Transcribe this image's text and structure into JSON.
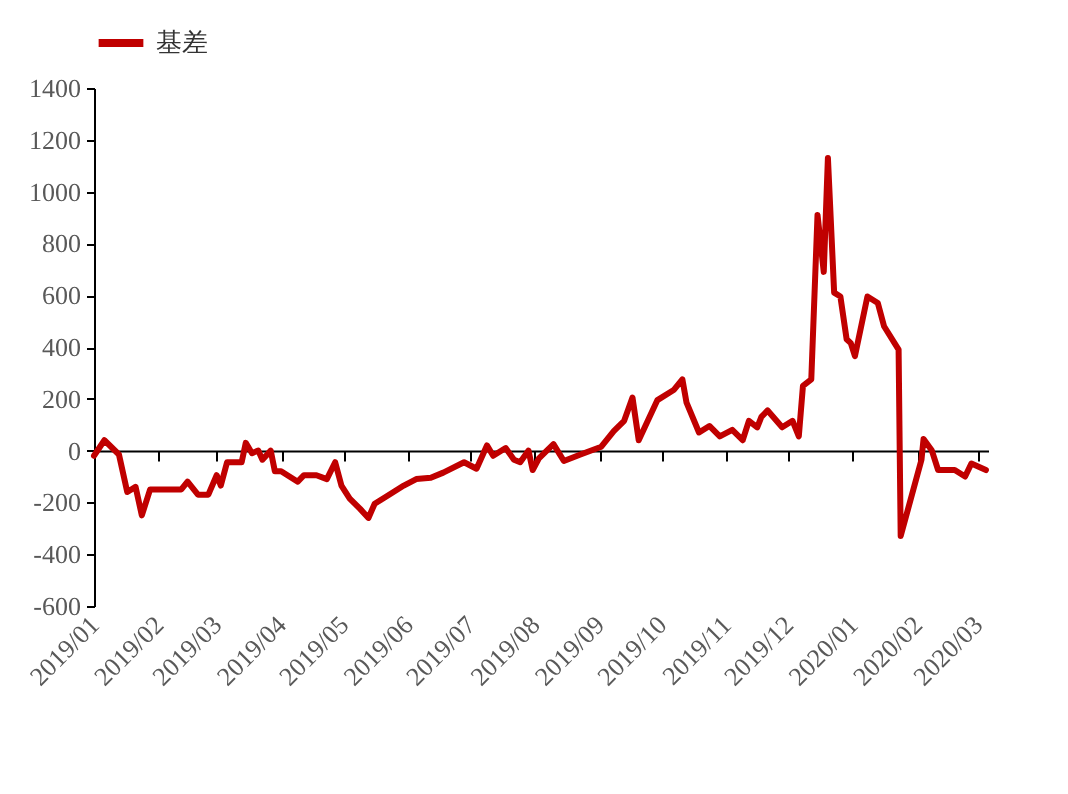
{
  "chart_data": {
    "type": "line",
    "legend": "top",
    "x": [
      "2019-01-01",
      "2019-01-06",
      "2019-01-13",
      "2019-01-17",
      "2019-01-21",
      "2019-01-24",
      "2019-01-28",
      "2019-02-12",
      "2019-02-15",
      "2019-02-20",
      "2019-02-25",
      "2019-03-01",
      "2019-03-03",
      "2019-03-06",
      "2019-03-13",
      "2019-03-15",
      "2019-03-18",
      "2019-03-21",
      "2019-03-23",
      "2019-03-27",
      "2019-03-29",
      "2019-04-01",
      "2019-04-09",
      "2019-04-12",
      "2019-04-18",
      "2019-04-23",
      "2019-04-27",
      "2019-04-30",
      "2019-05-04",
      "2019-05-09",
      "2019-05-13",
      "2019-05-16",
      "2019-05-22",
      "2019-05-30",
      "2019-06-05",
      "2019-06-12",
      "2019-06-18",
      "2019-06-28",
      "2019-07-04",
      "2019-07-09",
      "2019-07-12",
      "2019-07-18",
      "2019-07-22",
      "2019-07-25",
      "2019-07-29",
      "2019-07-31",
      "2019-08-03",
      "2019-08-10",
      "2019-08-15",
      "2019-08-23",
      "2019-09-02",
      "2019-09-08",
      "2019-09-13",
      "2019-09-17",
      "2019-09-20",
      "2019-09-29",
      "2019-10-07",
      "2019-10-11",
      "2019-10-13",
      "2019-10-19",
      "2019-10-24",
      "2019-10-29",
      "2019-11-04",
      "2019-11-09",
      "2019-11-12",
      "2019-11-16",
      "2019-11-18",
      "2019-11-21",
      "2019-11-28",
      "2019-12-03",
      "2019-12-06",
      "2019-12-08",
      "2019-12-12",
      "2019-12-15",
      "2019-12-18",
      "2019-12-20",
      "2019-12-23",
      "2019-12-26",
      "2019-12-29",
      "2019-12-31",
      "2020-01-02",
      "2020-01-08",
      "2020-01-13",
      "2020-01-16",
      "2020-01-23",
      "2020-01-24",
      "2020-02-03",
      "2020-02-04",
      "2020-02-08",
      "2020-02-11",
      "2020-02-19",
      "2020-02-24",
      "2020-02-27",
      "2020-03-05"
    ],
    "series": [
      {
        "name": "基差",
        "color": "#c00000",
        "values": [
          -20,
          40,
          -15,
          -160,
          -140,
          -250,
          -150,
          -150,
          -120,
          -170,
          -170,
          -95,
          -135,
          -45,
          -45,
          30,
          -10,
          0,
          -35,
          0,
          -80,
          -80,
          -120,
          -95,
          -95,
          -110,
          -45,
          -135,
          -185,
          -225,
          -260,
          -205,
          -175,
          -135,
          -110,
          -105,
          -85,
          -45,
          -70,
          20,
          -20,
          10,
          -35,
          -45,
          0,
          -75,
          -30,
          25,
          -40,
          -15,
          15,
          75,
          115,
          205,
          40,
          195,
          235,
          275,
          185,
          70,
          95,
          55,
          80,
          40,
          115,
          90,
          130,
          155,
          90,
          115,
          55,
          250,
          275,
          910,
          690,
          1130,
          610,
          595,
          430,
          415,
          365,
          595,
          570,
          480,
          390,
          -330,
          -35,
          45,
          0,
          -75,
          -75,
          -100,
          -50,
          -75
        ]
      }
    ],
    "ylim": [
      -600,
      1400
    ],
    "yticks": [
      -600,
      -400,
      -200,
      0,
      200,
      400,
      600,
      800,
      1000,
      1200,
      1400
    ],
    "xlim": [
      "2019-01-01",
      "2020-03-06"
    ],
    "xticks": [
      {
        "value": "2019-01",
        "label": "2019/01"
      },
      {
        "value": "2019-02",
        "label": "2019/02"
      },
      {
        "value": "2019-03",
        "label": "2019/03"
      },
      {
        "value": "2019-04",
        "label": "2019/04"
      },
      {
        "value": "2019-05",
        "label": "2019/05"
      },
      {
        "value": "2019-06",
        "label": "2019/06"
      },
      {
        "value": "2019-07",
        "label": "2019/07"
      },
      {
        "value": "2019-08",
        "label": "2019/08"
      },
      {
        "value": "2019-09",
        "label": "2019/09"
      },
      {
        "value": "2019-10",
        "label": "2019/10"
      },
      {
        "value": "2019-11",
        "label": "2019/11"
      },
      {
        "value": "2019-12",
        "label": "2019/12"
      },
      {
        "value": "2020-01",
        "label": "2020/01"
      },
      {
        "value": "2020-02",
        "label": "2020/02"
      },
      {
        "value": "2020-03",
        "label": "2020/03"
      }
    ]
  }
}
